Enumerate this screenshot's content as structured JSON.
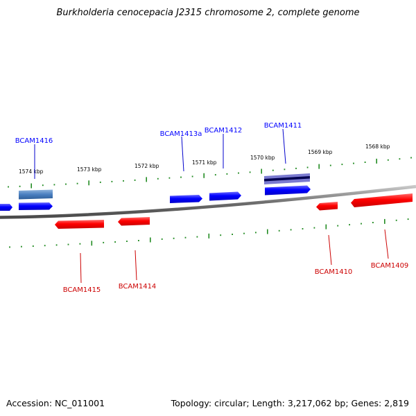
{
  "title": "Burkholderia cenocepacia J2315 chromosome 2, complete genome",
  "footer": {
    "accession": "Accession: NC_011001",
    "summary": "Topology: circular; Length: 3,217,062 bp; Genes: 2,819"
  },
  "ruler_labels": [
    "1574 kbp",
    "1573 kbp",
    "1572 kbp",
    "1571 kbp",
    "1570 kbp",
    "1569 kbp",
    "1568 kbp"
  ],
  "genes_forward": [
    {
      "label": "BCAM1416"
    },
    {
      "label": "BCAM1413a"
    },
    {
      "label": "BCAM1412"
    },
    {
      "label": "BCAM1411"
    }
  ],
  "genes_reverse": [
    {
      "label": "BCAM1415"
    },
    {
      "label": "BCAM1414"
    },
    {
      "label": "BCAM1410"
    },
    {
      "label": "BCAM1409"
    }
  ],
  "colors": {
    "forward": "#0000ff",
    "reverse": "#ff0000",
    "backbone": "#777777",
    "ticks": "#228b22",
    "highlight": "#4a7fc0"
  }
}
